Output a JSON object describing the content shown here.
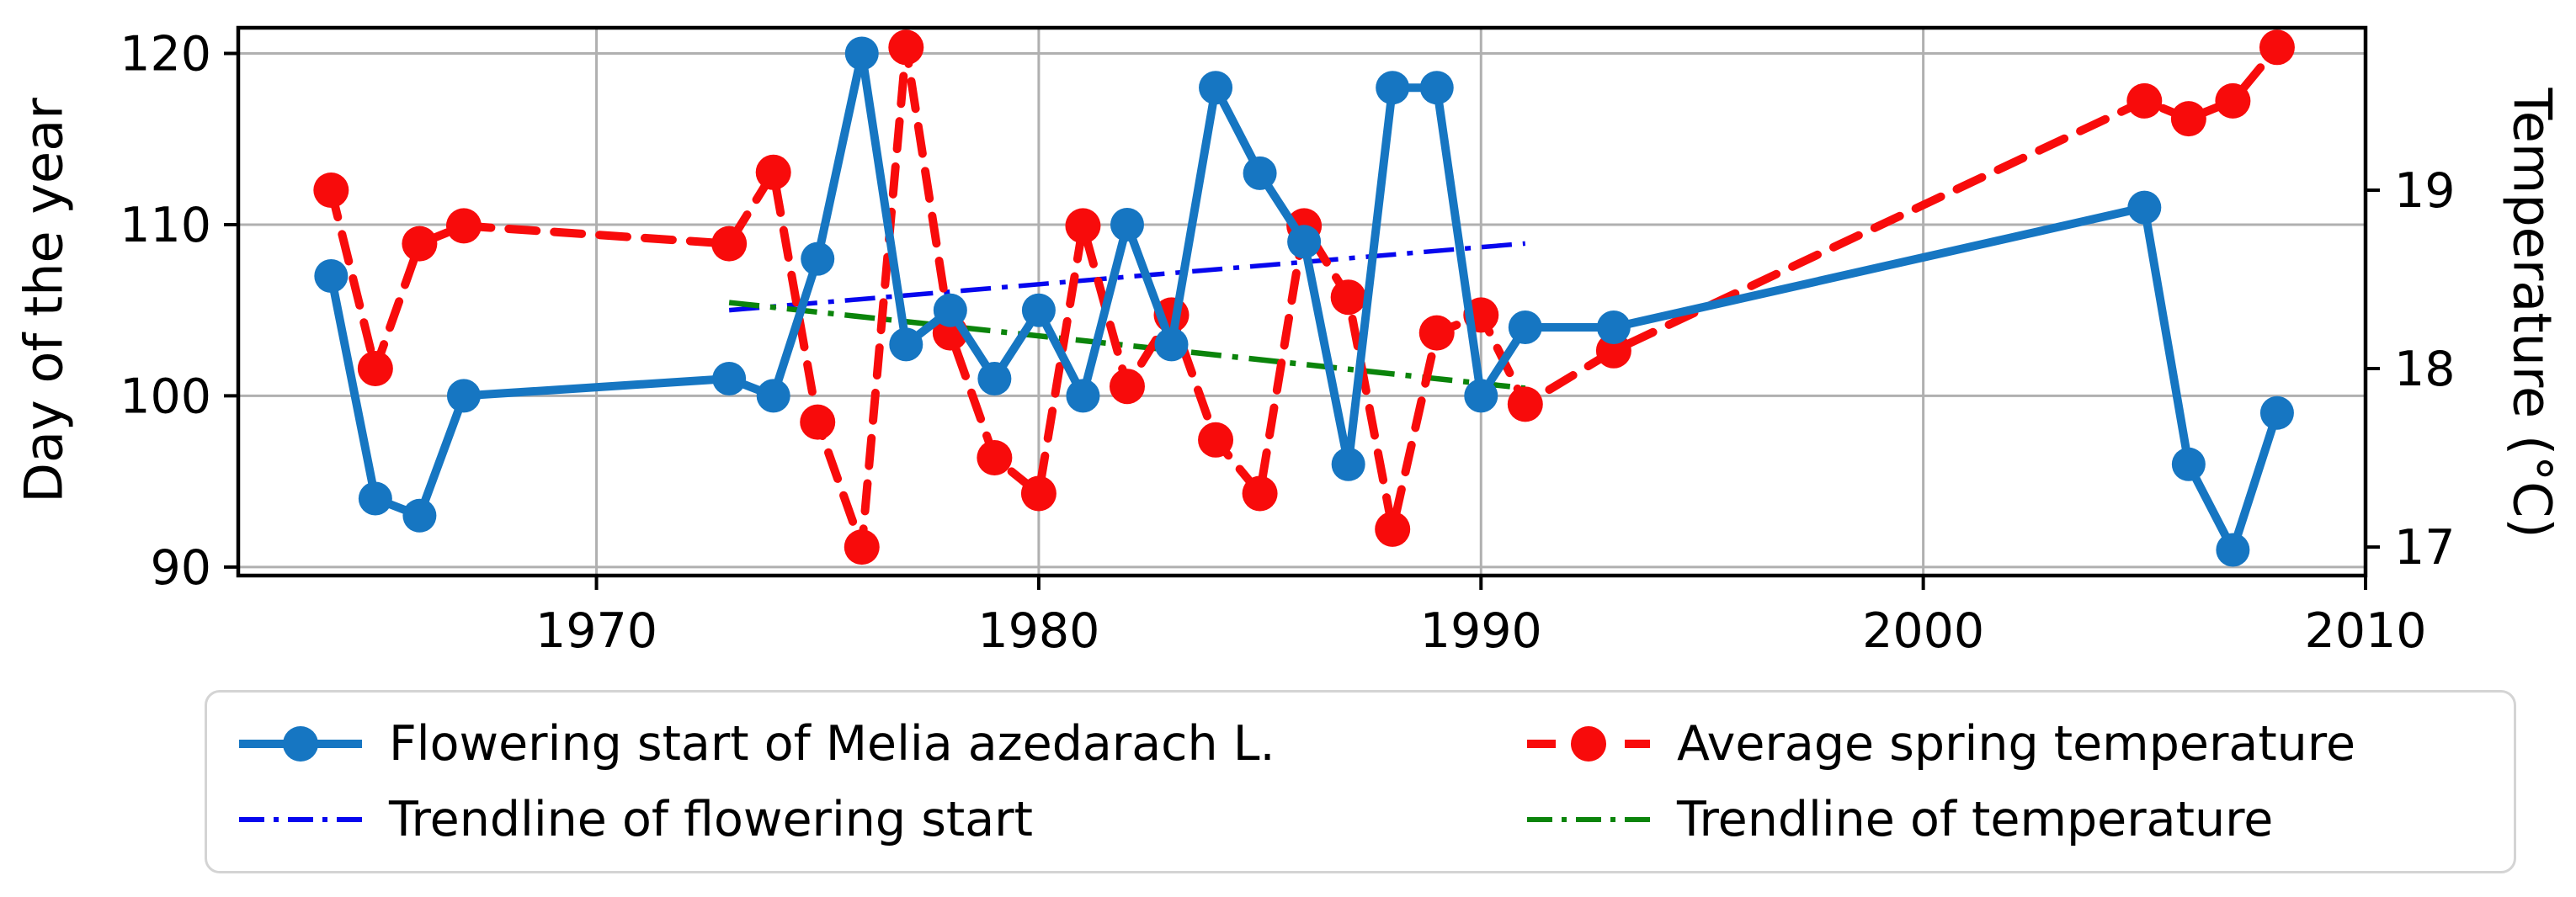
{
  "chart_data": {
    "type": "line",
    "title": "",
    "x_ticks": [
      1970,
      1980,
      1990,
      2000,
      2010
    ],
    "xlim": [
      1961.9,
      2010
    ],
    "grid": true,
    "legend_position": "bottom",
    "left_axis": {
      "label": "Day of the year",
      "ticks": [
        90,
        100,
        110,
        120
      ],
      "lim": [
        89.5,
        121.5
      ]
    },
    "right_axis": {
      "label": "Temperature (°C)",
      "ticks": [
        17,
        18,
        19
      ],
      "lim": [
        16.84,
        19.91
      ]
    },
    "series": [
      {
        "name": "Flowering start of Melia azedarach L.",
        "axis": "left",
        "style": "solid-marker",
        "color": "#1676c2",
        "points": [
          [
            1964,
            107
          ],
          [
            1965,
            94
          ],
          [
            1966,
            93
          ],
          [
            1967,
            100
          ],
          [
            1973,
            101
          ],
          [
            1974,
            100
          ],
          [
            1975,
            108
          ],
          [
            1976,
            120
          ],
          [
            1977,
            103
          ],
          [
            1978,
            105
          ],
          [
            1979,
            101
          ],
          [
            1980,
            105
          ],
          [
            1981,
            100
          ],
          [
            1982,
            110
          ],
          [
            1983,
            103
          ],
          [
            1984,
            118
          ],
          [
            1985,
            113
          ],
          [
            1986,
            109
          ],
          [
            1987,
            96
          ],
          [
            1988,
            118
          ],
          [
            1989,
            118
          ],
          [
            1990,
            100
          ],
          [
            1991,
            104
          ],
          [
            1993,
            104
          ],
          [
            2005,
            111
          ],
          [
            2006,
            96
          ],
          [
            2007,
            91
          ],
          [
            2008,
            99
          ]
        ]
      },
      {
        "name": "Average spring temperature",
        "axis": "right",
        "style": "dashed-marker",
        "color": "#f80b0b",
        "points": [
          [
            1964,
            19.0
          ],
          [
            1965,
            18.0
          ],
          [
            1966,
            18.7
          ],
          [
            1967,
            18.8
          ],
          [
            1973,
            18.7
          ],
          [
            1974,
            19.1
          ],
          [
            1975,
            17.7
          ],
          [
            1976,
            17.0
          ],
          [
            1977,
            19.8
          ],
          [
            1978,
            18.2
          ],
          [
            1979,
            17.5
          ],
          [
            1980,
            17.3
          ],
          [
            1981,
            18.8
          ],
          [
            1982,
            17.9
          ],
          [
            1983,
            18.3
          ],
          [
            1984,
            17.6
          ],
          [
            1985,
            17.3
          ],
          [
            1986,
            18.8
          ],
          [
            1987,
            18.4
          ],
          [
            1988,
            17.1
          ],
          [
            1989,
            18.2
          ],
          [
            1990,
            18.3
          ],
          [
            1991,
            17.8
          ],
          [
            1993,
            18.1
          ],
          [
            2005,
            19.5
          ],
          [
            2006,
            19.4
          ],
          [
            2007,
            19.5
          ],
          [
            2008,
            19.8
          ]
        ]
      },
      {
        "name": "Trendline of flowering start",
        "axis": "left",
        "style": "dashdot",
        "color": "#0707ee",
        "points": [
          [
            1973,
            105.0
          ],
          [
            1991,
            108.9
          ]
        ]
      },
      {
        "name": "Trendline of temperature",
        "axis": "right",
        "style": "dashdot",
        "color": "#0b840b",
        "points": [
          [
            1973,
            18.37
          ],
          [
            1991,
            17.89
          ]
        ]
      }
    ],
    "colors": {
      "grid": "#b0b0b0",
      "spine": "#000000",
      "text": "#000000",
      "legend_border": "#d4d4d4"
    }
  }
}
